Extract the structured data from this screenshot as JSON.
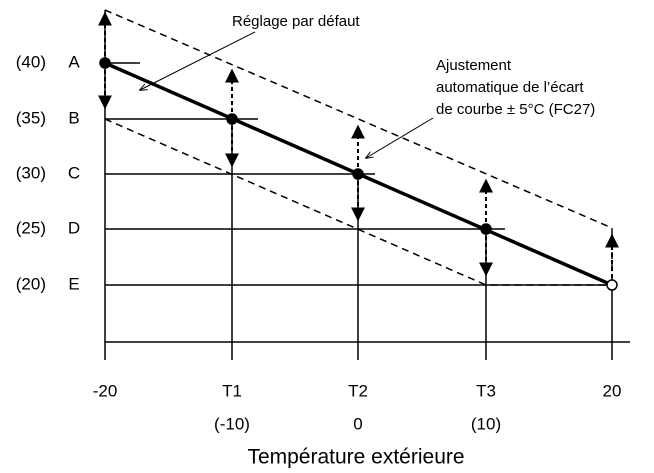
{
  "y_labels": [
    {
      "value": "(40)",
      "letter": "A"
    },
    {
      "value": "(35)",
      "letter": "B"
    },
    {
      "value": "(30)",
      "letter": "C"
    },
    {
      "value": "(25)",
      "letter": "D"
    },
    {
      "value": "(20)",
      "letter": "E"
    }
  ],
  "x_labels": [
    {
      "name": "-20"
    },
    {
      "name": "T1",
      "value": "(-10)"
    },
    {
      "name": "T2",
      "value": "0"
    },
    {
      "name": "T3",
      "value": "(10)"
    },
    {
      "name": "20"
    }
  ],
  "annotations": {
    "default": "Réglage par défaut",
    "auto": [
      "Ajustement",
      "automatique de l’écart",
      "de courbe ± 5°C (FC27)"
    ]
  },
  "x_axis_title": "Température extérieure"
}
